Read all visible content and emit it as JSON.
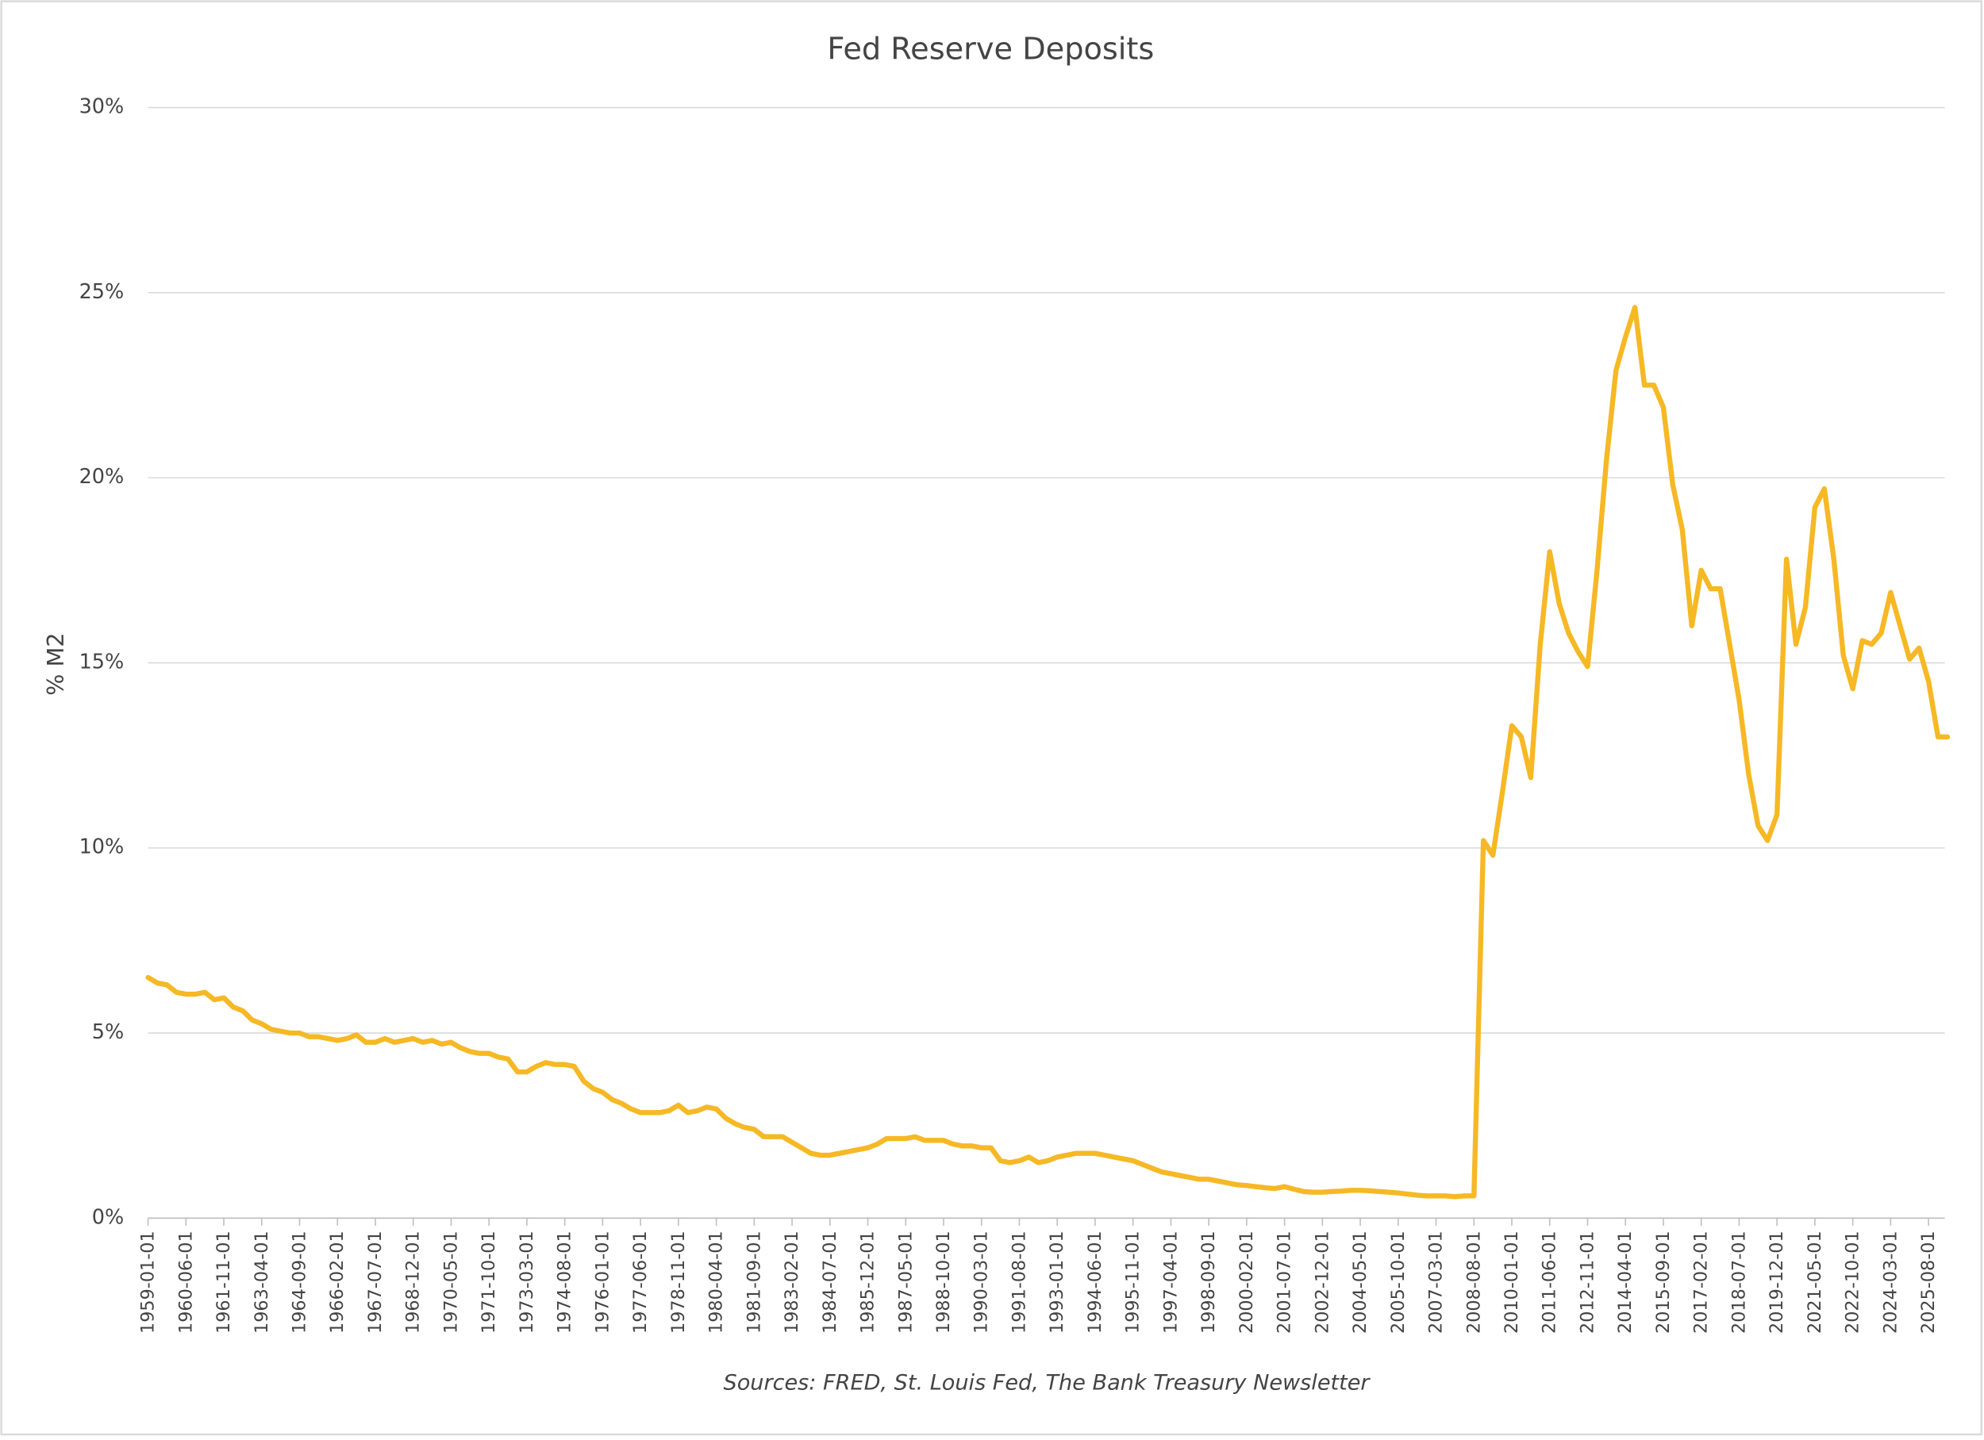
{
  "chart_data": {
    "type": "line",
    "title": "Fed Reserve Deposits",
    "y_label": "% M2",
    "source": "Sources: FRED, St. Louis Fed, The Bank Treasury Newsletter",
    "categories": [
      "1959-01-01",
      null,
      null,
      null,
      "1960-06-01",
      null,
      null,
      null,
      "1961-11-01",
      null,
      null,
      null,
      "1963-04-01",
      null,
      null,
      null,
      "1964-09-01",
      null,
      null,
      null,
      "1966-02-01",
      null,
      null,
      null,
      "1967-07-01",
      null,
      null,
      null,
      "1968-12-01",
      null,
      null,
      null,
      "1970-05-01",
      null,
      null,
      null,
      "1971-10-01",
      null,
      null,
      null,
      "1973-03-01",
      null,
      null,
      null,
      "1974-08-01",
      null,
      null,
      null,
      "1976-01-01",
      null,
      null,
      null,
      "1977-06-01",
      null,
      null,
      null,
      "1978-11-01",
      null,
      null,
      null,
      "1980-04-01",
      null,
      null,
      null,
      "1981-09-01",
      null,
      null,
      null,
      "1983-02-01",
      null,
      null,
      null,
      "1984-07-01",
      null,
      null,
      null,
      "1985-12-01",
      null,
      null,
      null,
      "1987-05-01",
      null,
      null,
      null,
      "1988-10-01",
      null,
      null,
      null,
      "1990-03-01",
      null,
      null,
      null,
      "1991-08-01",
      null,
      null,
      null,
      "1993-01-01",
      null,
      null,
      null,
      "1994-06-01",
      null,
      null,
      null,
      "1995-11-01",
      null,
      null,
      null,
      "1997-04-01",
      null,
      null,
      null,
      "1998-09-01",
      null,
      null,
      null,
      "2000-02-01",
      null,
      null,
      null,
      "2001-07-01",
      null,
      null,
      null,
      "2002-12-01",
      null,
      null,
      null,
      "2004-05-01",
      null,
      null,
      null,
      "2005-10-01",
      null,
      null,
      null,
      "2007-03-01",
      null,
      null,
      null,
      "2008-08-01",
      null,
      null,
      null,
      "2010-01-01",
      null,
      null,
      null,
      "2011-06-01",
      null,
      null,
      null,
      "2012-11-01",
      null,
      null,
      null,
      "2014-04-01",
      null,
      null,
      null,
      "2015-09-01",
      null,
      null,
      null,
      "2017-02-01",
      null,
      null,
      null,
      "2018-07-01",
      null,
      null,
      null,
      "2019-12-01",
      null,
      null,
      null,
      "2021-05-01",
      null,
      null,
      null,
      "2022-10-01",
      null,
      null,
      null,
      "2024-03-01",
      null,
      null,
      null,
      "2025-08-01",
      null,
      null
    ],
    "series": [
      {
        "color": "#f6b824",
        "values": [
          6.5,
          6.35,
          6.3,
          6.1,
          6.05,
          6.05,
          6.1,
          5.9,
          5.95,
          5.7,
          5.6,
          5.35,
          5.25,
          5.1,
          5.05,
          5.0,
          5.0,
          4.9,
          4.9,
          4.85,
          4.8,
          4.85,
          4.95,
          4.75,
          4.75,
          4.85,
          4.75,
          4.8,
          4.85,
          4.75,
          4.8,
          4.7,
          4.75,
          4.6,
          4.5,
          4.45,
          4.45,
          4.35,
          4.3,
          3.95,
          3.95,
          4.1,
          4.2,
          4.15,
          4.15,
          4.1,
          3.7,
          3.5,
          3.4,
          3.2,
          3.1,
          2.95,
          2.85,
          2.85,
          2.85,
          2.9,
          3.05,
          2.85,
          2.9,
          3.0,
          2.95,
          2.7,
          2.55,
          2.45,
          2.4,
          2.2,
          2.2,
          2.2,
          2.05,
          1.9,
          1.75,
          1.7,
          1.7,
          1.75,
          1.8,
          1.85,
          1.9,
          2.0,
          2.15,
          2.15,
          2.15,
          2.2,
          2.1,
          2.1,
          2.1,
          2.0,
          1.95,
          1.95,
          1.9,
          1.9,
          1.55,
          1.5,
          1.55,
          1.65,
          1.5,
          1.55,
          1.65,
          1.7,
          1.75,
          1.75,
          1.75,
          1.7,
          1.65,
          1.6,
          1.55,
          1.45,
          1.35,
          1.25,
          1.2,
          1.15,
          1.1,
          1.05,
          1.05,
          1.0,
          0.95,
          0.9,
          0.88,
          0.85,
          0.82,
          0.8,
          0.85,
          0.78,
          0.72,
          0.7,
          0.7,
          0.72,
          0.73,
          0.75,
          0.75,
          0.74,
          0.72,
          0.7,
          0.68,
          0.65,
          0.62,
          0.6,
          0.6,
          0.6,
          0.58,
          0.6,
          0.6,
          10.2,
          9.8,
          11.5,
          13.3,
          13.0,
          11.9,
          15.5,
          18.0,
          16.6,
          15.8,
          15.3,
          14.9,
          17.5,
          20.5,
          22.9,
          23.8,
          24.6,
          22.5,
          22.5,
          21.9,
          19.8,
          18.6,
          16.0,
          17.5,
          17.0,
          17.0,
          15.5,
          14.0,
          12.0,
          10.6,
          10.2,
          10.9,
          17.8,
          15.5,
          16.5,
          19.2,
          19.7,
          17.8,
          15.2,
          14.3,
          15.6,
          15.5,
          15.8,
          16.9,
          16.0,
          15.1,
          15.4,
          14.5,
          13.0,
          13.0
        ]
      }
    ],
    "ylim": [
      0,
      30
    ],
    "yticks": [
      {
        "value": 0,
        "label": "0%"
      },
      {
        "value": 5,
        "label": "5%"
      },
      {
        "value": 10,
        "label": "10%"
      },
      {
        "value": 15,
        "label": "15%"
      },
      {
        "value": 20,
        "label": "20%"
      },
      {
        "value": 25,
        "label": "25%"
      },
      {
        "value": 30,
        "label": "30%"
      }
    ],
    "grid": true
  }
}
